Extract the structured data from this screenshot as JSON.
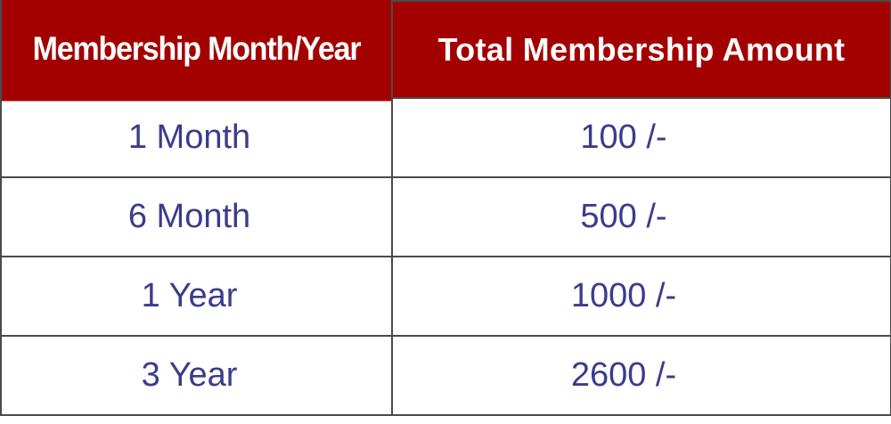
{
  "table": {
    "headers": [
      "Membership Month/Year",
      "Total Membership Amount"
    ],
    "rows": [
      {
        "duration": "1 Month",
        "amount": "100 /-"
      },
      {
        "duration": "6 Month",
        "amount": "500 /-"
      },
      {
        "duration": "1 Year",
        "amount": "1000 /-"
      },
      {
        "duration": "3 Year",
        "amount": "2600 /-"
      }
    ]
  },
  "colors": {
    "header_bg": "#a30000",
    "header_text": "#ffffff",
    "cell_text": "#3b3c8a",
    "border": "#4a4a4a"
  }
}
